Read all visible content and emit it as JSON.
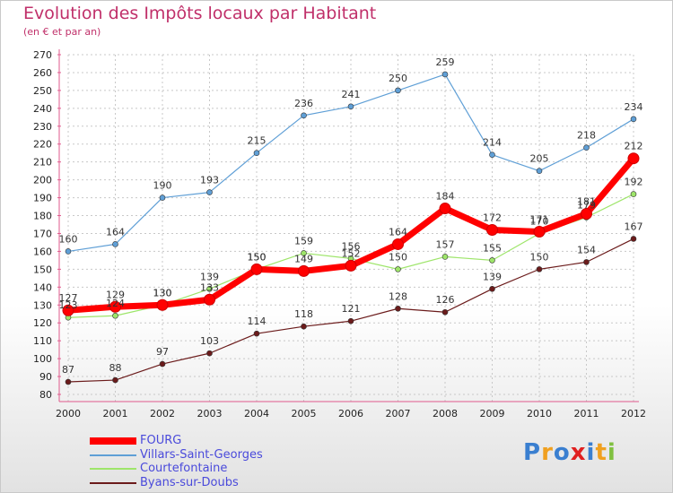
{
  "chart_data": {
    "type": "line",
    "title": "Evolution des Impôts locaux par Habitant",
    "subtitle": "(en € et par an)",
    "x": [
      "2000",
      "2001",
      "2002",
      "2003",
      "2004",
      "2005",
      "2006",
      "2007",
      "2008",
      "2009",
      "2010",
      "2011",
      "2012"
    ],
    "ylim": [
      80,
      270
    ],
    "ytick_step": 10,
    "grid": true,
    "series": [
      {
        "name": "Villars-Saint-Georges",
        "color": "#5f9fd6",
        "values": [
          160,
          164,
          190,
          193,
          215,
          236,
          241,
          250,
          259,
          214,
          205,
          218,
          234
        ]
      },
      {
        "name": "Courtefontaine",
        "color": "#9ee56a",
        "values": [
          123,
          124,
          130,
          139,
          150,
          159,
          156,
          150,
          157,
          155,
          170,
          179,
          192
        ]
      },
      {
        "name": "Byans-sur-Doubs",
        "color": "#6b1b1b",
        "values": [
          87,
          88,
          97,
          103,
          114,
          118,
          121,
          128,
          126,
          139,
          150,
          154,
          167
        ]
      },
      {
        "name": "FOURG",
        "color": "#ff0000",
        "values": [
          127,
          129,
          130,
          133,
          150,
          149,
          152,
          164,
          184,
          172,
          171,
          181,
          212
        ]
      }
    ],
    "legend": [
      "FOURG",
      "Villars-Saint-Georges",
      "Courtefontaine",
      "Byans-sur-Doubs"
    ]
  },
  "logo": {
    "text": "Proxiti",
    "colors": [
      "#3a7fd0",
      "#f0a020",
      "#3a7fd0",
      "#e02020",
      "#3a7fd0",
      "#f0a020",
      "#80c040"
    ]
  }
}
